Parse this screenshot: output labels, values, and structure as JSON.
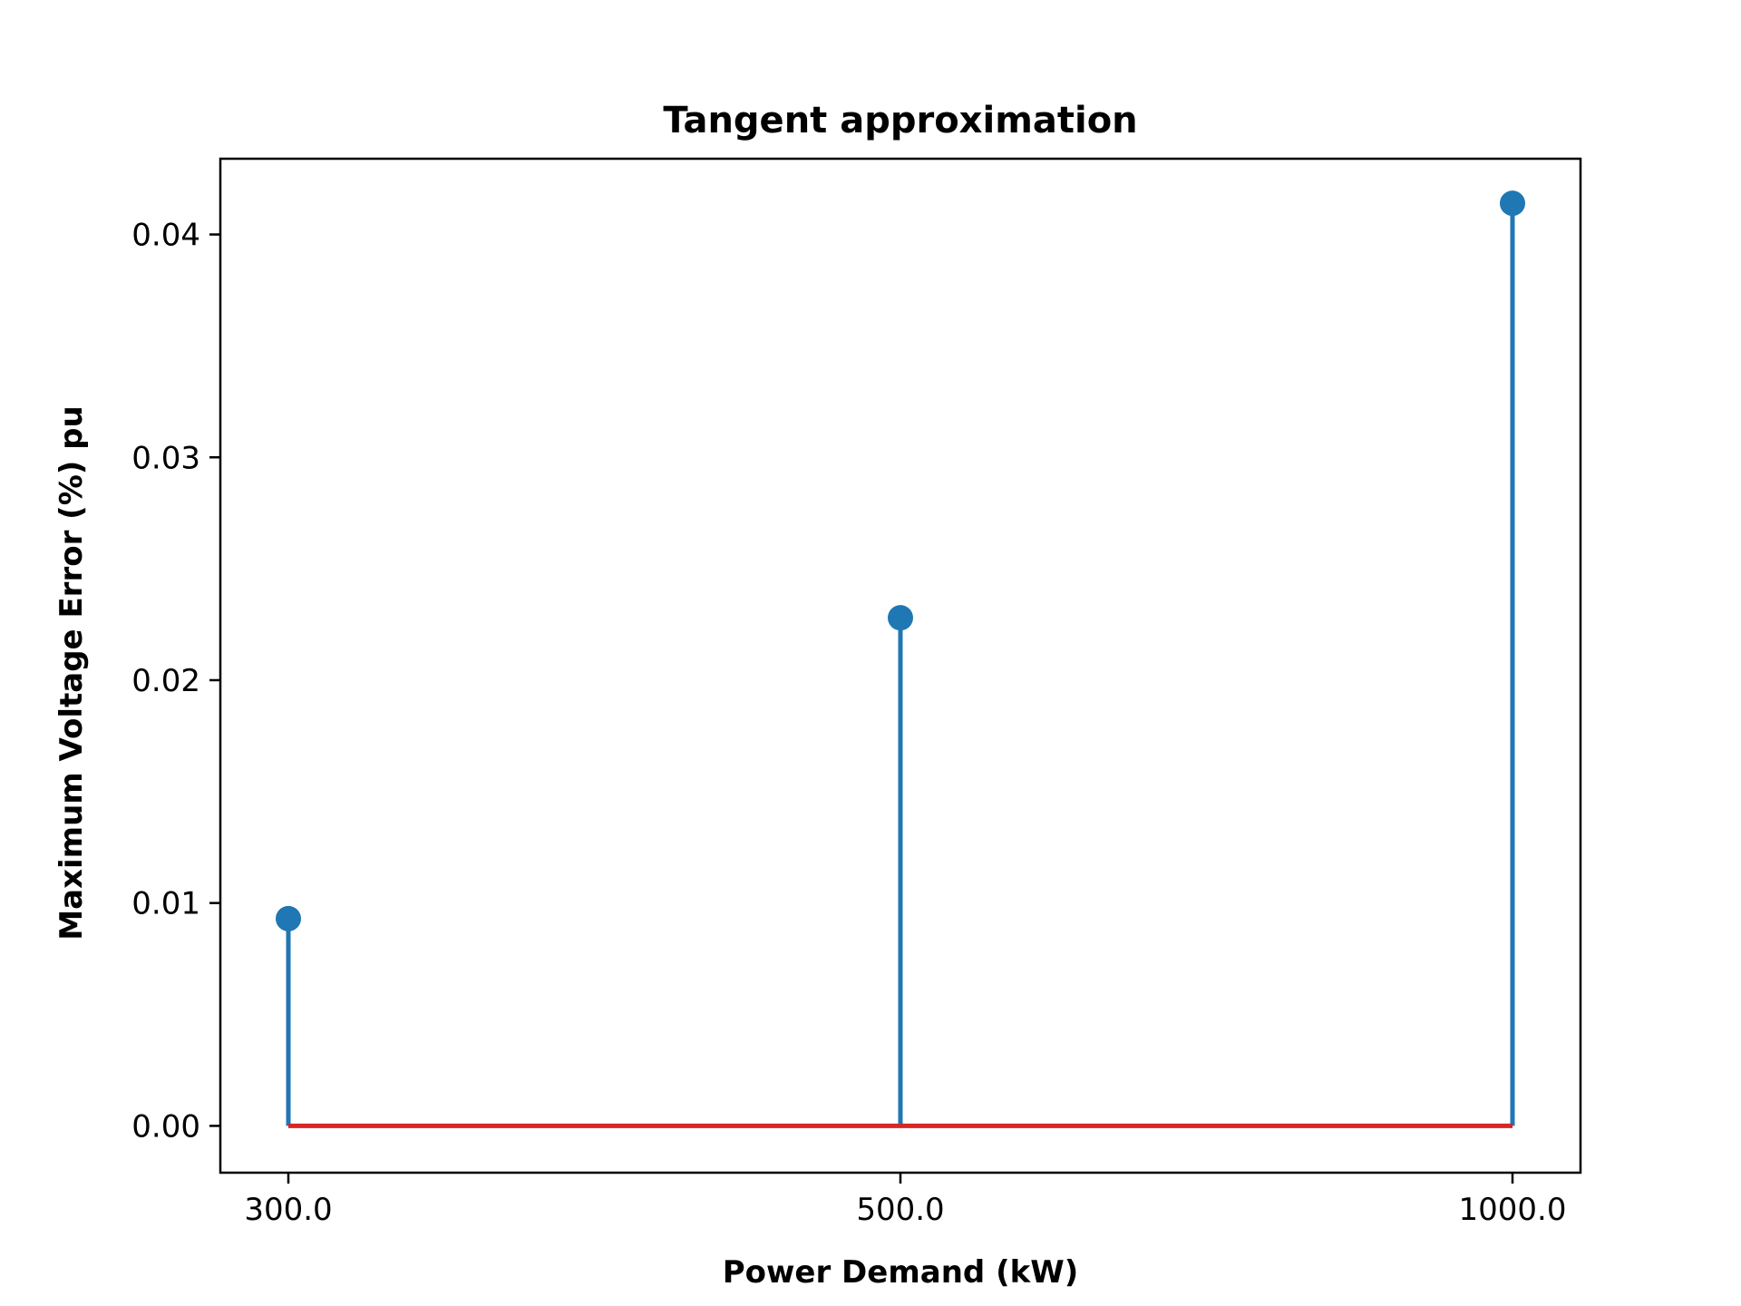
{
  "chart_data": {
    "type": "stem",
    "title": "Tangent approximation",
    "xlabel": "Power Demand (kW)",
    "ylabel": "Maximum Voltage Error (%) pu",
    "categories": [
      "300.0",
      "500.0",
      "1000.0"
    ],
    "values": [
      0.0093,
      0.0228,
      0.0414
    ],
    "baseline": 0.0,
    "ylim": [
      -0.0021,
      0.0434
    ],
    "yticks": [
      0.0,
      0.01,
      0.02,
      0.03,
      0.04
    ],
    "ytick_labels": [
      "0.00",
      "0.01",
      "0.02",
      "0.03",
      "0.04"
    ],
    "grid": false,
    "legend": "none",
    "colors": {
      "stem": "#1f77b4",
      "marker": "#1f77b4",
      "baseline": "#d62728",
      "axes": "#000000"
    }
  }
}
